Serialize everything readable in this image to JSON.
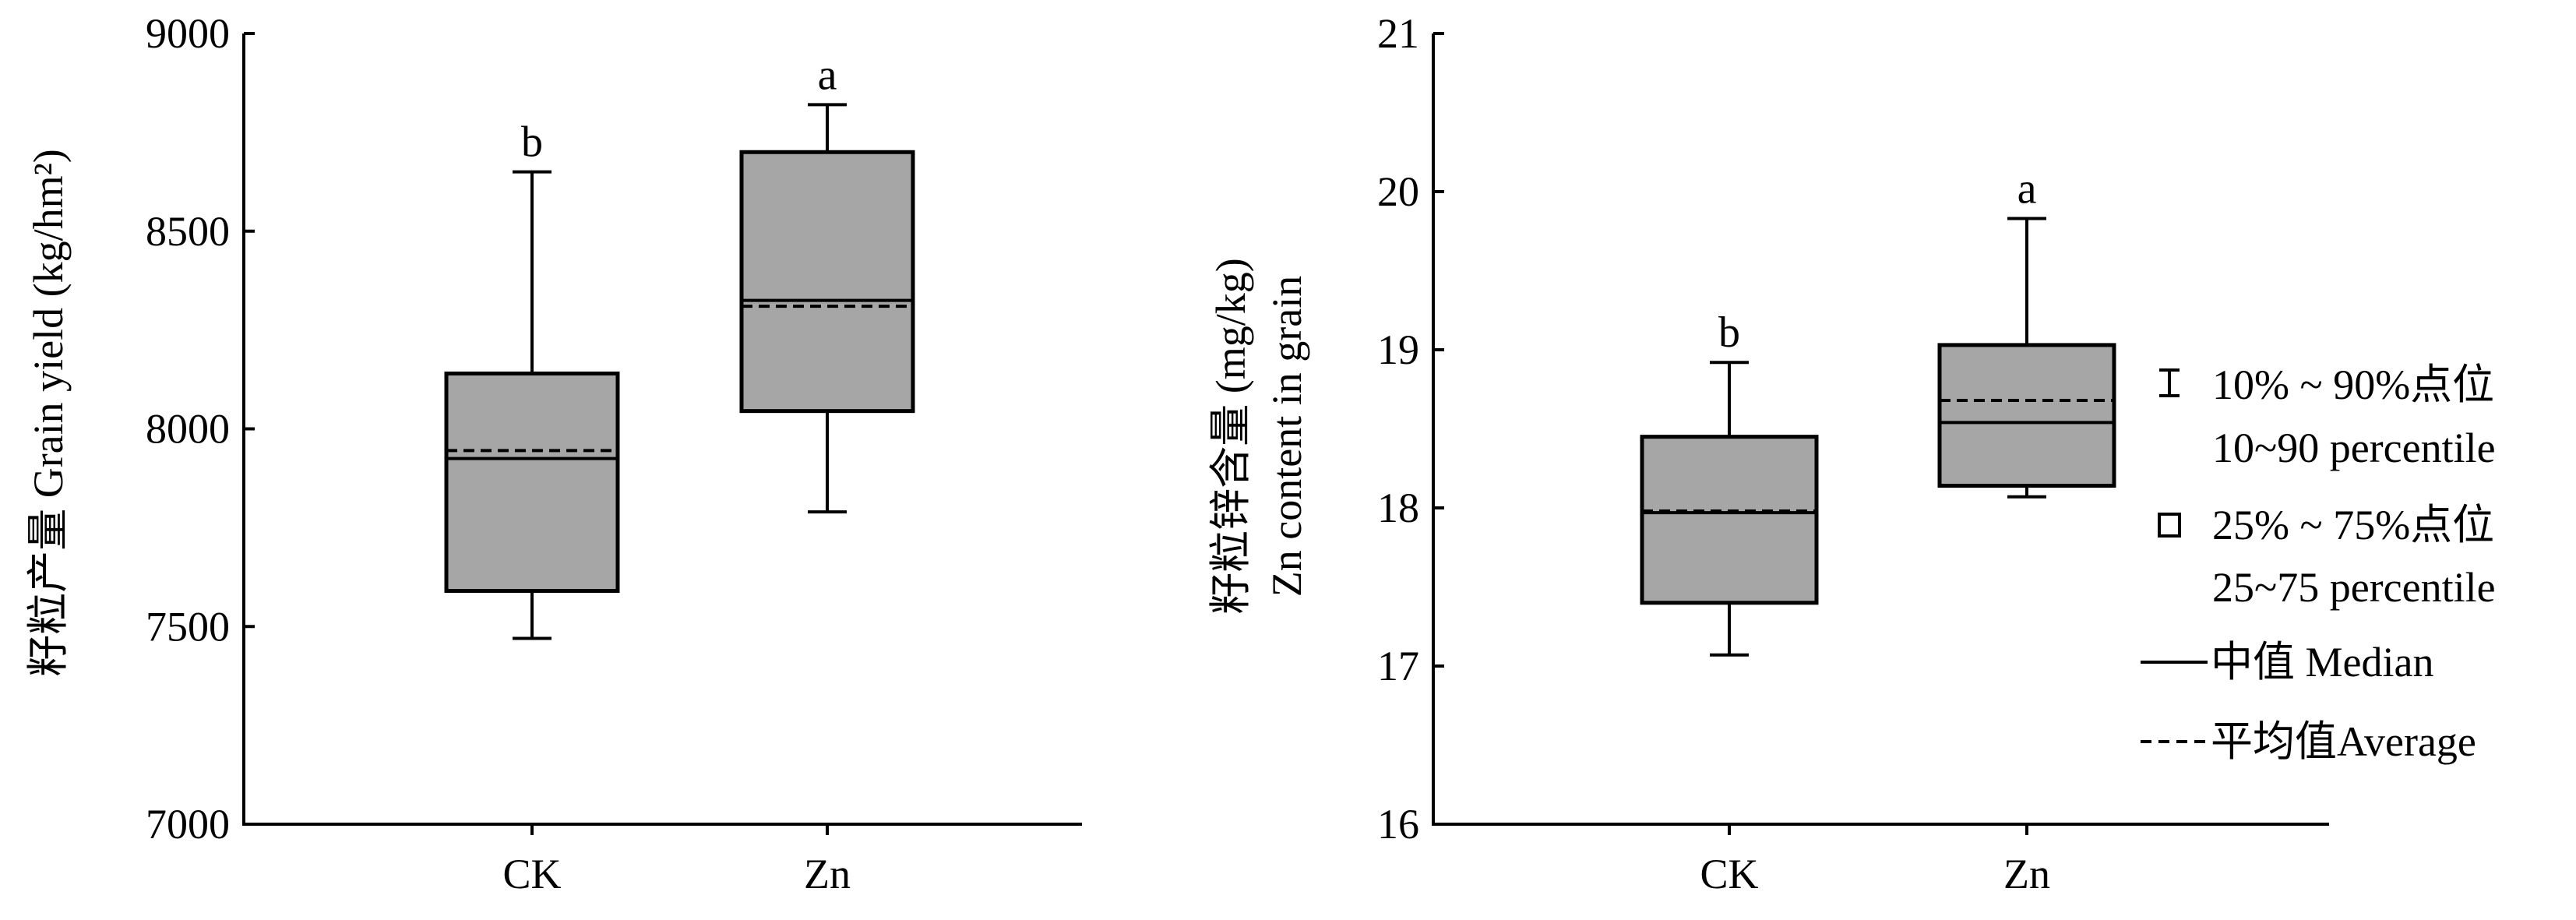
{
  "chart_data": [
    {
      "type": "box",
      "id": "grain-yield",
      "categories": [
        "CK",
        "Zn"
      ],
      "ylabel": "籽粒产量 Grain yield (kg/hm²)",
      "ylim": [
        7000,
        9000
      ],
      "yticks": [
        7000,
        7500,
        8000,
        8500,
        9000
      ],
      "ytick_labels": [
        "7000",
        "7500",
        "8000",
        "8500",
        "9000"
      ],
      "boxes": [
        {
          "category": "CK",
          "p10": 7470,
          "q1": 7590,
          "median": 7925,
          "mean": 7945,
          "q3": 8140,
          "p90": 8650,
          "significance": "b"
        },
        {
          "category": "Zn",
          "p10": 7790,
          "q1": 8045,
          "median": 8325,
          "mean": 8310,
          "q3": 8700,
          "p90": 8820,
          "significance": "a"
        }
      ]
    },
    {
      "type": "box",
      "id": "zn-content",
      "categories": [
        "CK",
        "Zn"
      ],
      "ylabel_line1": "籽粒锌含量 (mg/kg)",
      "ylabel_line2": "Zn content in grain",
      "ylim": [
        16,
        21
      ],
      "yticks": [
        16,
        17,
        18,
        19,
        20,
        21
      ],
      "ytick_labels": [
        "16",
        "17",
        "18",
        "19",
        "20",
        "21"
      ],
      "boxes": [
        {
          "category": "CK",
          "p10": 17.07,
          "q1": 17.4,
          "median": 17.97,
          "mean": 17.98,
          "q3": 18.45,
          "p90": 18.92,
          "significance": "b"
        },
        {
          "category": "Zn",
          "p10": 18.07,
          "q1": 18.14,
          "median": 18.54,
          "mean": 18.68,
          "q3": 19.03,
          "p90": 19.83,
          "significance": "a"
        }
      ]
    }
  ],
  "legend": {
    "whisker_line1": "10% ~ 90%点位",
    "whisker_line2": "10~90 percentile",
    "box_line1": "25% ~ 75%点位",
    "box_line2": "25~75 percentile",
    "median": "中值  Median",
    "average": "平均值Average"
  },
  "colors": {
    "box_fill": "#a6a6a6",
    "stroke": "#000000",
    "background": "#ffffff"
  }
}
